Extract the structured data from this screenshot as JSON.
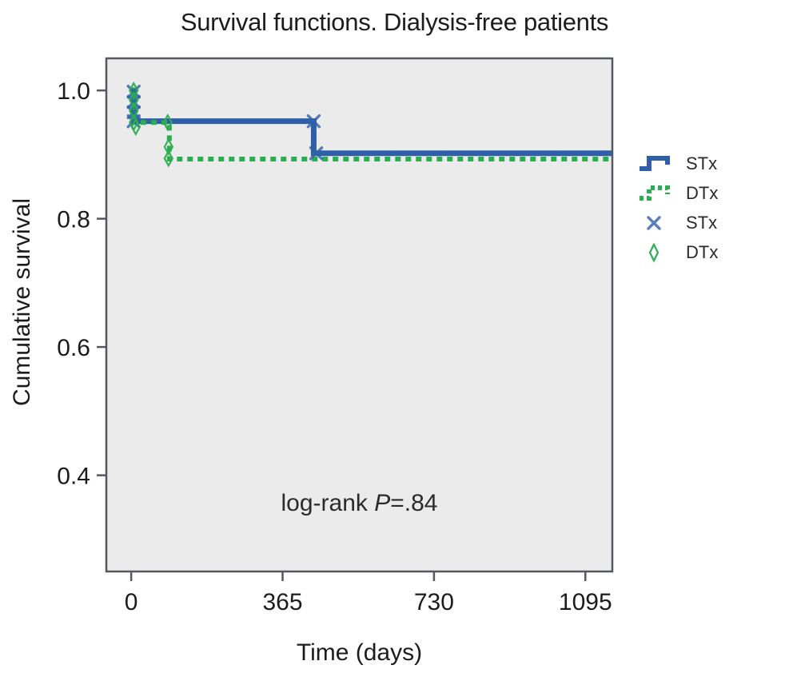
{
  "colors": {
    "stx_blue": "#2e5fa8",
    "dtx_green": "#2bae52",
    "plot_bg": "#ebebeb",
    "frame": "#55585c",
    "text": "#1c1c1c"
  },
  "chart_data": {
    "type": "line",
    "subtype": "kaplan-meier-step",
    "title": "Survival functions. Dialysis-free patients",
    "xlabel": "Time (days)",
    "ylabel": "Cumulative survival",
    "xlim": [
      -60,
      1160
    ],
    "ylim": [
      0.25,
      1.05
    ],
    "grid": false,
    "legend_position": "right",
    "x_ticks": [
      {
        "v": 0,
        "label": "0"
      },
      {
        "v": 365,
        "label": "365"
      },
      {
        "v": 730,
        "label": "730"
      },
      {
        "v": 1095,
        "label": "1095"
      }
    ],
    "y_ticks": [
      {
        "v": 1.0,
        "label": "1.0"
      },
      {
        "v": 0.8,
        "label": "0.8"
      },
      {
        "v": 0.6,
        "label": "0.6"
      },
      {
        "v": 0.4,
        "label": "0.4"
      }
    ],
    "annotation": {
      "prefix": "log-rank ",
      "p": "P",
      "suffix": "=.84"
    },
    "series": [
      {
        "name": "STx",
        "kind": "step",
        "style": "solid",
        "color": "#2e5fa8",
        "points": [
          [
            0,
            1.0
          ],
          [
            6,
            0.952
          ],
          [
            440,
            0.902
          ],
          [
            1158,
            0.902
          ]
        ]
      },
      {
        "name": "DTx",
        "kind": "step",
        "style": "dashed",
        "color": "#2bae52",
        "points": [
          [
            0,
            1.0
          ],
          [
            6,
            0.95
          ],
          [
            92,
            0.893
          ],
          [
            1158,
            0.893
          ]
        ]
      },
      {
        "name": "STx",
        "kind": "censor-x",
        "color": "#2e5fa8",
        "points": [
          [
            6,
            0.998
          ],
          [
            6,
            0.982
          ],
          [
            6,
            0.966
          ],
          [
            6,
            0.952
          ],
          [
            440,
            0.952
          ],
          [
            446,
            0.902
          ]
        ]
      },
      {
        "name": "DTx",
        "kind": "censor-diamond",
        "color": "#2bae52",
        "points": [
          [
            6,
            1.0
          ],
          [
            6,
            0.985
          ],
          [
            6,
            0.968
          ],
          [
            6,
            0.95
          ],
          [
            11,
            0.943
          ],
          [
            88,
            0.95
          ],
          [
            90,
            0.912
          ],
          [
            90,
            0.894
          ]
        ]
      }
    ],
    "legend": [
      {
        "label": "STx",
        "glyph": "step-solid"
      },
      {
        "label": "DTx",
        "glyph": "step-dashed"
      },
      {
        "label": "STx",
        "glyph": "x-marker"
      },
      {
        "label": "DTx",
        "glyph": "diamond-marker"
      }
    ]
  }
}
